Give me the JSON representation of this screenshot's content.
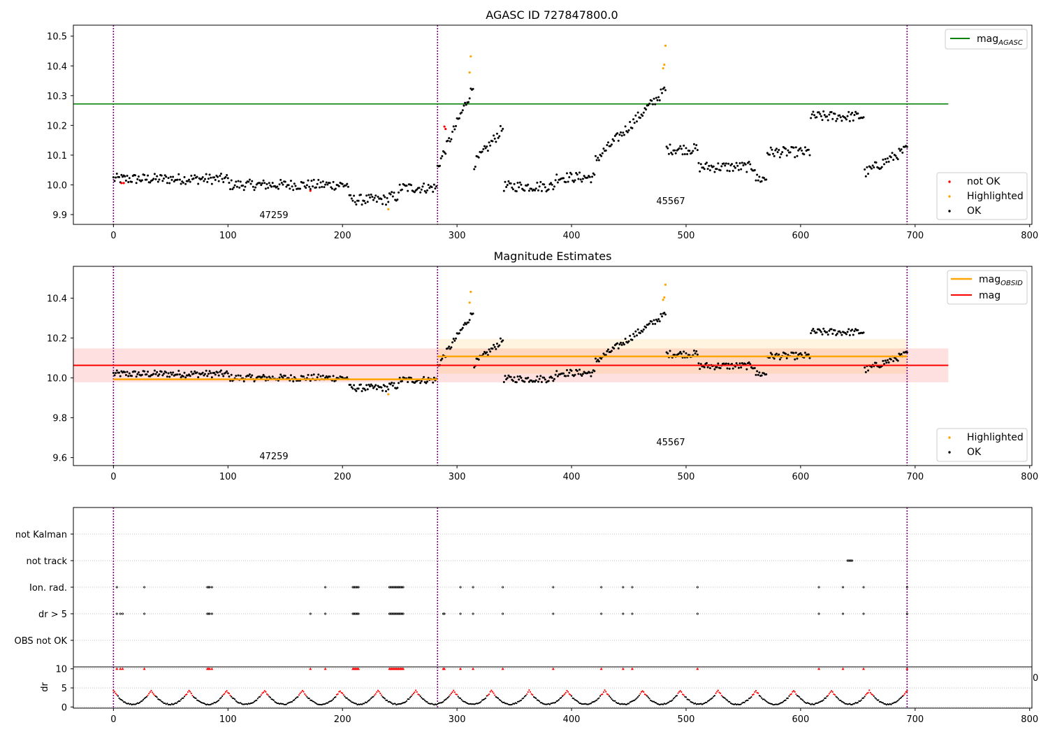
{
  "chart_data": [
    {
      "type": "scatter",
      "title": "AGASC ID 727847800.0",
      "xlabel": "",
      "ylabel": "",
      "xlim": [
        -35,
        802
      ],
      "ylim": [
        9.867,
        10.537
      ],
      "xticks": [
        "0",
        "100",
        "200",
        "300",
        "400",
        "500",
        "600",
        "700",
        "800"
      ],
      "yticks": [
        "9.9",
        "10.0",
        "10.1",
        "10.2",
        "10.3",
        "10.4",
        "10.5"
      ],
      "vlines": [
        0,
        283,
        693
      ],
      "hlines": [
        {
          "name": "mag_AGASC",
          "y": 10.272,
          "x_range": [
            -35,
            729
          ],
          "color": "#008000"
        }
      ],
      "annotations": [
        {
          "text": "47259",
          "x": 141,
          "y": 9.88
        },
        {
          "text": "45567",
          "x": 488,
          "y": 9.926
        }
      ],
      "legends": [
        {
          "entries": [
            "mag_AGASC"
          ],
          "position": "upper right"
        },
        {
          "entries": [
            "not OK",
            "Highlighted",
            "OK"
          ],
          "position": "lower right"
        }
      ],
      "series": [
        {
          "name": "OK",
          "color": "#000000",
          "points": "generated from segment trends (see script)"
        },
        {
          "name": "Highlighted",
          "color": "#FFA500",
          "points": [
            [
              240,
              9.918
            ],
            [
              311,
              10.378
            ],
            [
              312,
              10.432
            ],
            [
              480,
              10.392
            ],
            [
              481,
              10.404
            ],
            [
              482,
              10.468
            ]
          ]
        },
        {
          "name": "not OK",
          "color": "#FF0000",
          "points": [
            [
              7,
              10.006
            ],
            [
              9,
              10.006
            ],
            [
              172,
              9.98
            ],
            [
              289,
              10.196
            ],
            [
              290,
              10.188
            ]
          ]
        }
      ]
    },
    {
      "type": "scatter",
      "title": "Magnitude Estimates",
      "xlabel": "",
      "ylabel": "",
      "xlim": [
        -35,
        802
      ],
      "ylim": [
        9.56,
        10.56
      ],
      "xticks": [
        "0",
        "100",
        "200",
        "300",
        "400",
        "500",
        "600",
        "700",
        "800"
      ],
      "yticks": [
        "9.6",
        "9.8",
        "10.0",
        "10.2",
        "10.4"
      ],
      "vlines": [
        0,
        283,
        693
      ],
      "hlines": [
        {
          "name": "mag_OBSID",
          "y": 9.993,
          "x_range": [
            0,
            283
          ],
          "color": "#FFA500"
        },
        {
          "name": "mag_OBSID",
          "y": 10.108,
          "x_range": [
            283,
            693
          ],
          "color": "#FFA500"
        },
        {
          "name": "mag",
          "y": 10.063,
          "x_range": [
            -35,
            729
          ],
          "color": "#FF0000"
        }
      ],
      "bands": [
        {
          "y": [
            9.978,
            10.148
          ],
          "x_range": [
            -35,
            729
          ],
          "color": "#FF0000"
        },
        {
          "y": [
            10.021,
            10.195
          ],
          "x_range": [
            283,
            693
          ],
          "color": "#FFA500"
        }
      ],
      "annotations": [
        {
          "text": "47259",
          "x": 141,
          "y": 9.59
        },
        {
          "text": "45567",
          "x": 488,
          "y": 9.664
        }
      ],
      "legends": [
        {
          "entries": [
            "mag_OBSID",
            "mag"
          ],
          "position": "upper right"
        },
        {
          "entries": [
            "Highlighted",
            "OK"
          ],
          "position": "lower right"
        }
      ]
    },
    {
      "type": "scatter",
      "title": "",
      "xlabel": "",
      "ylabel": "",
      "categories": [
        "not Kalman",
        "not track",
        "Ion. rad.",
        "dr > 5",
        "OBS not OK"
      ],
      "vlines": [
        0,
        283,
        693
      ],
      "series": [
        {
          "name": "not track",
          "x": [
            641,
            642,
            643,
            644,
            645
          ]
        },
        {
          "name": "Ion. rad.",
          "x": [
            3,
            27,
            82,
            83,
            84,
            86,
            185,
            209,
            210,
            211,
            212,
            213,
            214,
            241,
            242,
            243,
            244,
            245,
            246,
            247,
            248,
            249,
            250,
            251,
            252,
            253,
            303,
            314,
            340,
            384,
            426,
            445,
            453,
            510,
            616,
            637,
            655,
            693
          ]
        },
        {
          "name": "dr > 5",
          "x": [
            3,
            6,
            8,
            27,
            82,
            83,
            84,
            86,
            172,
            185,
            209,
            210,
            211,
            212,
            213,
            214,
            241,
            242,
            243,
            244,
            245,
            246,
            247,
            248,
            249,
            250,
            251,
            252,
            253,
            288,
            289,
            303,
            314,
            340,
            384,
            426,
            445,
            453,
            510,
            616,
            637,
            655,
            693
          ]
        }
      ]
    },
    {
      "type": "scatter",
      "title": "",
      "xlabel": "",
      "ylabel": "dr",
      "xlim": [
        -35,
        802
      ],
      "ylim": [
        -0.3,
        10.5
      ],
      "xticks": [
        "0",
        "100",
        "200",
        "300",
        "400",
        "500",
        "600",
        "700",
        "800"
      ],
      "yticks": [
        "0",
        "5",
        "10"
      ],
      "clipped_label": "0",
      "series": [
        {
          "name": "dr > 5",
          "color": "#FF0000",
          "points": "capped at 10 for x in dr > 5 list"
        },
        {
          "name": "dr",
          "color": "#000000",
          "points": "smooth arcs between 0.5 and 5 (see script)"
        }
      ]
    }
  ],
  "colors": {
    "ok": "#000000",
    "highlighted": "#FFA500",
    "not_ok": "#FF0000",
    "agasc": "#008000",
    "vline": "#800080"
  },
  "legend_labels": {
    "mag_main": "mag",
    "agasc_sub": "AGASC",
    "obsid_sub": "OBSID",
    "mag": "mag",
    "not_ok": "not OK",
    "highlighted": "Highlighted",
    "ok": "OK"
  }
}
